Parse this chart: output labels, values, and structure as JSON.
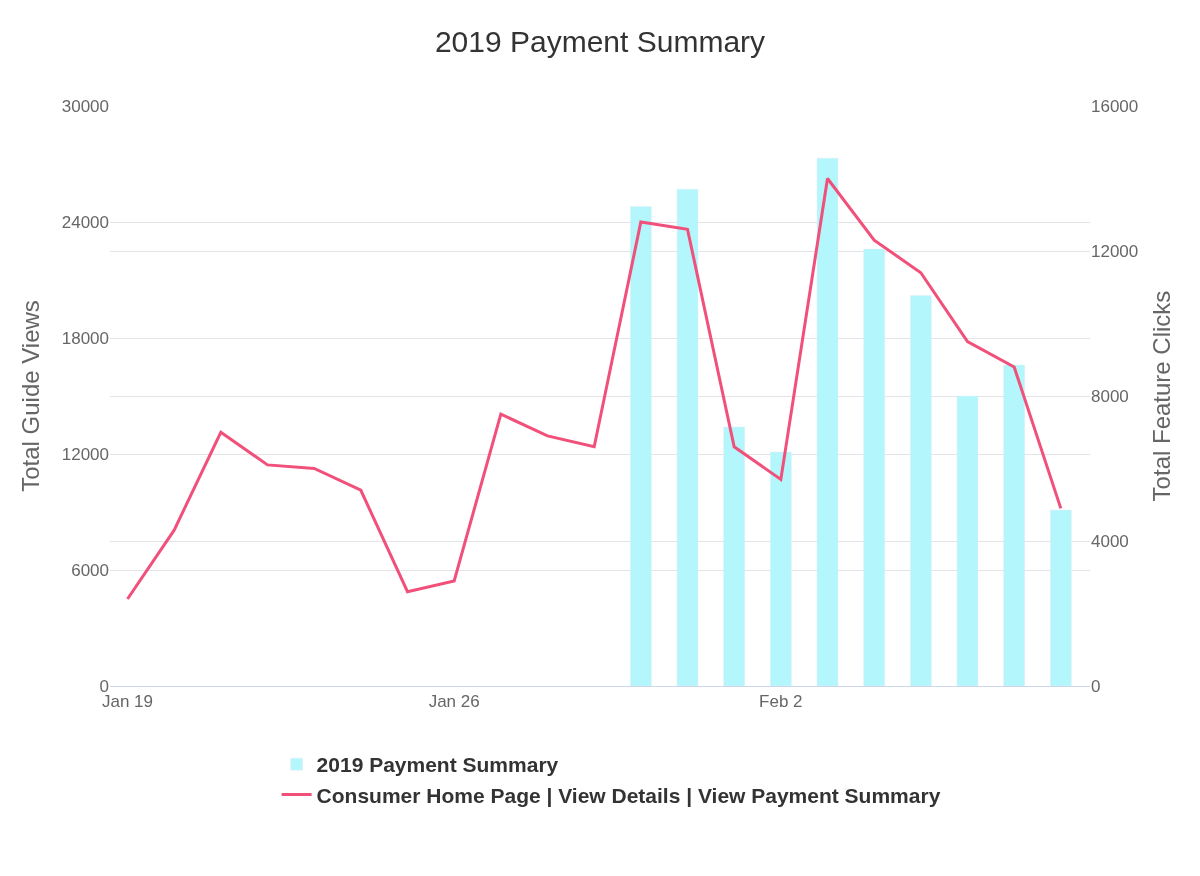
{
  "chart_data": {
    "type": "line",
    "title": "2019 Payment Summary",
    "ylabel": "Total Guide Views",
    "y2label": "Total Feature Clicks",
    "x": [
      "2019-01-19",
      "2019-01-20",
      "2019-01-21",
      "2019-01-22",
      "2019-01-23",
      "2019-01-24",
      "2019-01-25",
      "2019-01-26",
      "2019-01-27",
      "2019-01-28",
      "2019-01-29",
      "2019-01-30",
      "2019-01-31",
      "2019-02-01",
      "2019-02-02",
      "2019-02-03",
      "2019-02-04",
      "2019-02-05",
      "2019-02-06",
      "2019-02-07",
      "2019-02-08"
    ],
    "series": [
      {
        "name": "2019 Payment Summary",
        "type": "bar",
        "color": "#b3f6fb",
        "x": [
          "2019-01-30",
          "2019-01-31",
          "2019-02-01",
          "2019-02-02",
          "2019-02-03",
          "2019-02-04",
          "2019-02-05",
          "2019-02-06",
          "2019-02-07",
          "2019-02-08"
        ],
        "values": [
          24800,
          25700,
          13400,
          12100,
          27300,
          22600,
          20200,
          15000,
          16600,
          9100
        ]
      },
      {
        "name": "Consumer Home Page | View Details | View Payment Summary",
        "axis": "y2",
        "color": "#f0507a",
        "values": [
          2400,
          4300,
          7000,
          6100,
          6000,
          5400,
          2600,
          2900,
          7500,
          6900,
          6600,
          12800,
          12600,
          6600,
          5700,
          14000,
          12300,
          11400,
          9500,
          8800,
          4900
        ]
      }
    ],
    "xlim": [
      "2019-01-18T15:00",
      "2019-02-08T15:00"
    ],
    "xticks": [
      {
        "value": "2019-01-19",
        "label": "Jan 19"
      },
      {
        "value": "2019-01-26",
        "label": "Jan 26"
      },
      {
        "value": "2019-02-02",
        "label": "Feb 2"
      }
    ],
    "ylim": [
      0,
      30000
    ],
    "yticks": [
      0,
      6000,
      12000,
      18000,
      24000,
      30000
    ],
    "y2lim": [
      0,
      16000
    ],
    "y2ticks": [
      0,
      4000,
      8000,
      12000,
      16000
    ],
    "grid": "y",
    "legend": "bottom",
    "marker": "none",
    "line_style": "solid"
  }
}
